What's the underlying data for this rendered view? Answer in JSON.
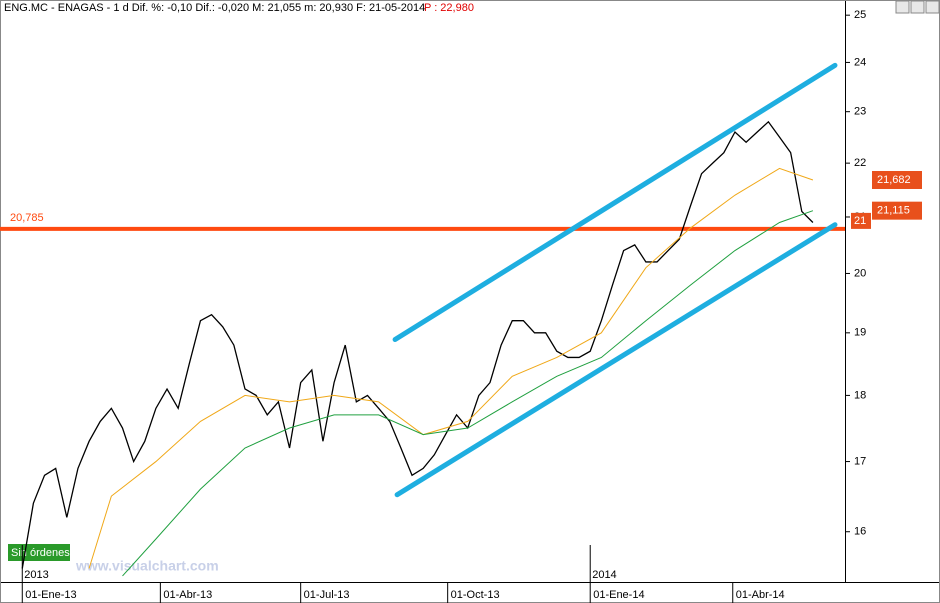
{
  "chart_data": {
    "type": "line",
    "header": "ENG.MC - ENAGAS - 1 d Dif. %: -0,10 Dif.: -0,020 M: 21,055 m: 20,930 F: 21-05-2014",
    "cursor_price": "P : 22,980",
    "log_scale": true,
    "ylim": [
      15.32,
      25.33
    ],
    "yticks": [
      16,
      17,
      18,
      19,
      20,
      21,
      22,
      23,
      24,
      25
    ],
    "xlim": [
      -10,
      369.4
    ],
    "xticks": [
      {
        "value": 0,
        "label": "01-Ene-13"
      },
      {
        "value": 62,
        "label": "01-Abr-13"
      },
      {
        "value": 125,
        "label": "01-Jul-13"
      },
      {
        "value": 191,
        "label": "01-Oct-13"
      },
      {
        "value": 255,
        "label": "01-Ene-14"
      },
      {
        "value": 319,
        "label": "01-Abr-14"
      }
    ],
    "year_labels": [
      {
        "value": 0,
        "label": "2013"
      },
      {
        "value": 255,
        "label": "2014"
      }
    ],
    "series": [
      {
        "color": "#000000",
        "x": [
          0,
          5,
          10,
          15,
          20,
          25,
          30,
          35,
          40,
          45,
          50,
          55,
          60,
          65,
          70,
          75,
          80,
          85,
          90,
          95,
          100,
          105,
          110,
          115,
          120,
          125,
          130,
          135,
          140,
          145,
          150,
          155,
          160,
          165,
          170,
          175,
          180,
          185,
          190,
          195,
          200,
          205,
          210,
          215,
          220,
          225,
          230,
          235,
          240,
          245,
          250,
          255,
          260,
          265,
          270,
          275,
          280,
          285,
          290,
          295,
          300,
          305,
          310,
          315,
          320,
          325,
          330,
          335,
          340,
          345,
          350,
          355
        ],
        "values": [
          15.5,
          16.4,
          16.8,
          16.9,
          16.2,
          16.9,
          17.3,
          17.6,
          17.8,
          17.5,
          17.0,
          17.3,
          17.8,
          18.1,
          17.8,
          18.5,
          19.2,
          19.3,
          19.1,
          18.8,
          18.1,
          18.0,
          17.7,
          17.9,
          17.2,
          18.2,
          18.4,
          17.3,
          18.2,
          18.8,
          17.9,
          18.0,
          17.8,
          17.6,
          17.2,
          16.8,
          16.9,
          17.1,
          17.4,
          17.7,
          17.5,
          18.0,
          18.2,
          18.8,
          19.2,
          19.2,
          19.0,
          19.0,
          18.7,
          18.6,
          18.6,
          18.7,
          19.2,
          19.8,
          20.4,
          20.5,
          20.2,
          20.2,
          20.4,
          20.6,
          21.2,
          21.8,
          22.0,
          22.2,
          22.6,
          22.4,
          22.6,
          22.8,
          22.5,
          22.2,
          21.1,
          20.9
        ]
      },
      {
        "color": "#f0a818",
        "x": [
          30,
          40,
          60,
          80,
          100,
          120,
          140,
          160,
          180,
          200,
          220,
          240,
          260,
          280,
          300,
          320,
          340,
          355
        ],
        "values": [
          15.5,
          16.5,
          17.0,
          17.6,
          18.0,
          17.9,
          18.0,
          17.9,
          17.4,
          17.6,
          18.3,
          18.6,
          19.0,
          20.1,
          20.8,
          21.4,
          21.9,
          21.682
        ]
      },
      {
        "color": "#20a040",
        "x": [
          45,
          60,
          80,
          100,
          120,
          140,
          160,
          180,
          200,
          220,
          240,
          260,
          280,
          300,
          320,
          340,
          355
        ],
        "values": [
          15.4,
          15.9,
          16.6,
          17.2,
          17.5,
          17.7,
          17.7,
          17.4,
          17.5,
          17.9,
          18.3,
          18.6,
          19.2,
          19.8,
          20.4,
          20.9,
          21.115
        ]
      }
    ],
    "channel": [
      {
        "color": "#1eaee0",
        "x": [
          167.4,
          364.9
        ],
        "y": [
          18.89,
          23.94
        ]
      },
      {
        "color": "#1eaee0",
        "x": [
          168.3,
          364.9
        ],
        "y": [
          16.52,
          20.86
        ]
      }
    ],
    "hline": {
      "value": 20.785,
      "label": "20,785",
      "color": "#ff4a10"
    },
    "tags": [
      {
        "value": 21.682,
        "label": "21,682"
      },
      {
        "value": 21.115,
        "label": "21,115"
      }
    ],
    "last_price_tag": "21",
    "orders_badge": "Sin órdenes",
    "watermark": "www.visualchart.com"
  }
}
